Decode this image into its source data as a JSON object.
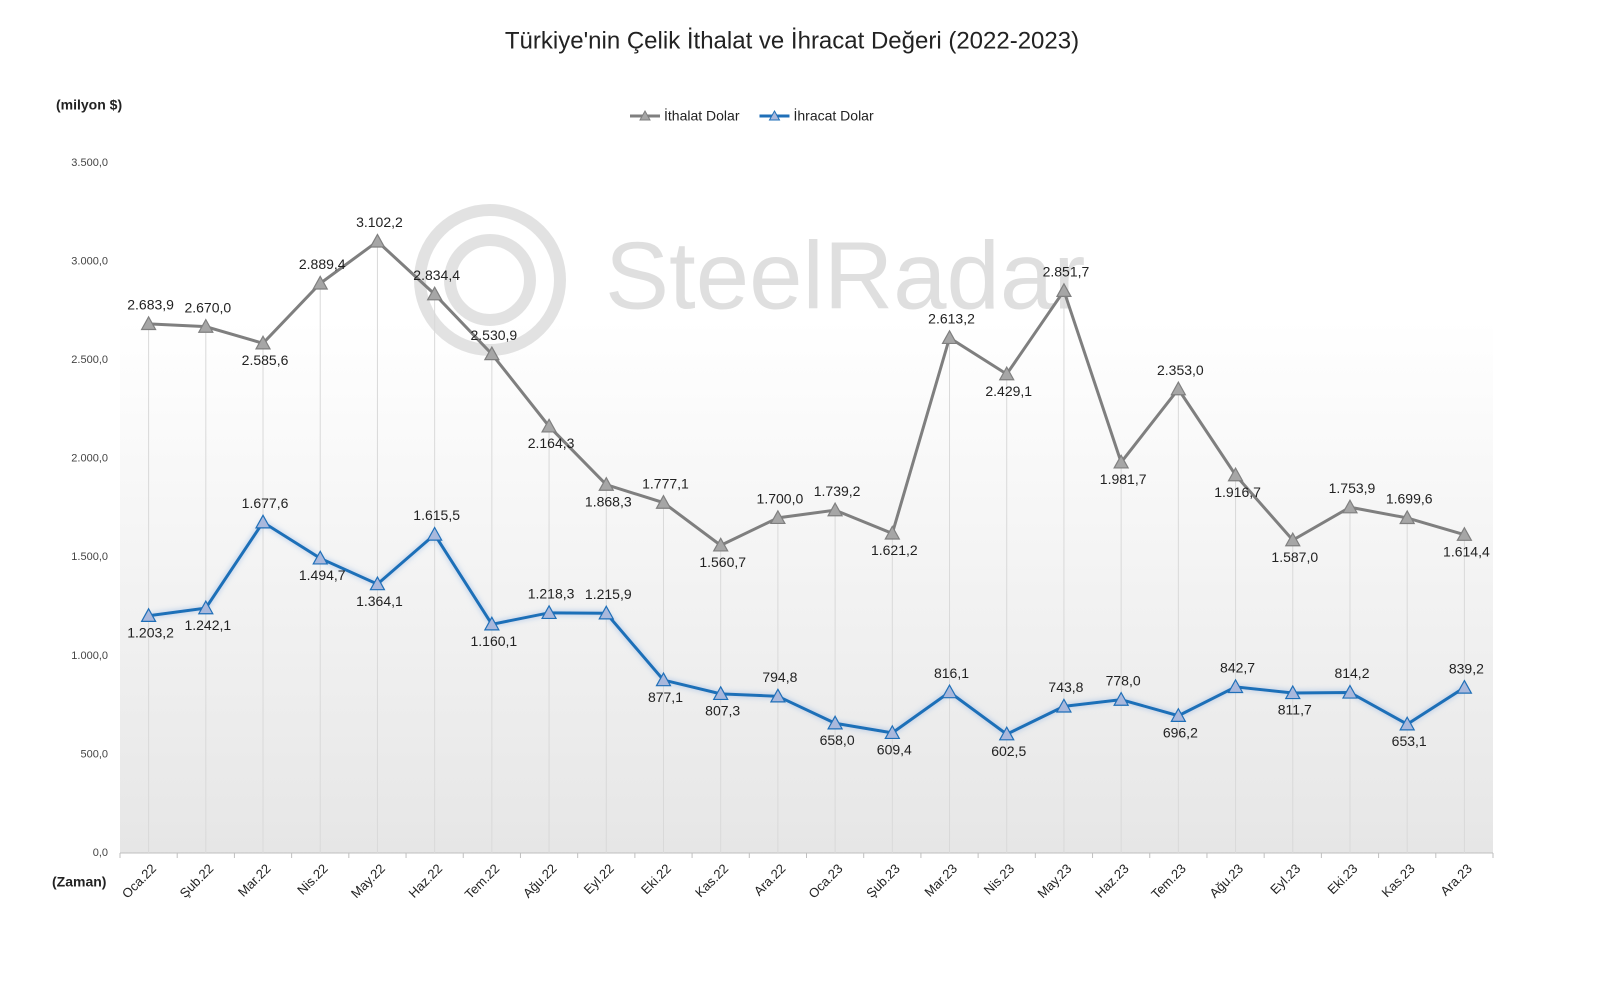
{
  "chart_data": {
    "type": "line",
    "title": "Türkiye'nin Çelik İthalat ve İhracat Değeri (2022-2023)",
    "y_label": "(milyon $)",
    "x_label": "(Zaman)",
    "watermark": "SteelRadar",
    "categories": [
      "Oca.22",
      "Şub.22",
      "Mar.22",
      "Nis.22",
      "May.22",
      "Haz.22",
      "Tem.22",
      "Ağu.22",
      "Eyl.22",
      "Eki.22",
      "Kas.22",
      "Ara.22",
      "Oca.23",
      "Şub.23",
      "Mar.23",
      "Nis.23",
      "May.23",
      "Haz.23",
      "Tem.23",
      "Ağu.23",
      "Eyl.23",
      "Eki.23",
      "Kas.23",
      "Ara.23"
    ],
    "series": [
      {
        "name": "İthalat Dolar",
        "color": "#7f7f7f",
        "marker_fill": "#a6a6a6",
        "values": [
          2683.9,
          2670.0,
          2585.6,
          2889.4,
          3102.2,
          2834.4,
          2530.9,
          2164.3,
          1868.3,
          1777.1,
          1560.7,
          1700.0,
          1739.2,
          1621.2,
          2613.2,
          2429.1,
          2851.7,
          1981.7,
          2353.0,
          1916.7,
          1587.0,
          1753.9,
          1699.6,
          1614.4
        ],
        "value_labels": [
          "2.683,9",
          "2.670,0",
          "2.585,6",
          "2.889,4",
          "3.102,2",
          "2.834,4",
          "2.530,9",
          "2.164,3",
          "1.868,3",
          "1.777,1",
          "1.560,7",
          "1.700,0",
          "1.739,2",
          "1.621,2",
          "2.613,2",
          "2.429,1",
          "2.851,7",
          "1.981,7",
          "2.353,0",
          "1.916,7",
          "1.587,0",
          "1.753,9",
          "1.699,6",
          "1.614,4"
        ]
      },
      {
        "name": "İhracat Dolar",
        "color": "#1f6fb8",
        "marker_fill": "#a9b8dc",
        "values": [
          1203.2,
          1242.1,
          1677.6,
          1494.7,
          1364.1,
          1615.5,
          1160.1,
          1218.3,
          1215.9,
          877.1,
          807.3,
          794.8,
          658.0,
          609.4,
          816.1,
          602.5,
          743.8,
          778.0,
          696.2,
          842.7,
          811.7,
          814.2,
          653.1,
          839.2
        ],
        "value_labels": [
          "1.203,2",
          "1.242,1",
          "1.677,6",
          "1.494,7",
          "1.364,1",
          "1.615,5",
          "1.160,1",
          "1.218,3",
          "1.215,9",
          "877,1",
          "807,3",
          "794,8",
          "658,0",
          "609,4",
          "816,1",
          "602,5",
          "743,8",
          "778,0",
          "696,2",
          "842,7",
          "811,7",
          "814,2",
          "653,1",
          "839,2"
        ]
      }
    ],
    "ylim": [
      0,
      3500
    ],
    "yticks": [
      {
        "value": 0,
        "label": "0,0"
      },
      {
        "value": 500,
        "label": "500,0"
      },
      {
        "value": 1000,
        "label": "1.000,0"
      },
      {
        "value": 1500,
        "label": "1.500,0"
      },
      {
        "value": 2000,
        "label": "2.000,0"
      },
      {
        "value": 2500,
        "label": "2.500,0"
      },
      {
        "value": 3000,
        "label": "3.000,0"
      },
      {
        "value": 3500,
        "label": "3.500,0"
      }
    ],
    "legend": "top"
  }
}
